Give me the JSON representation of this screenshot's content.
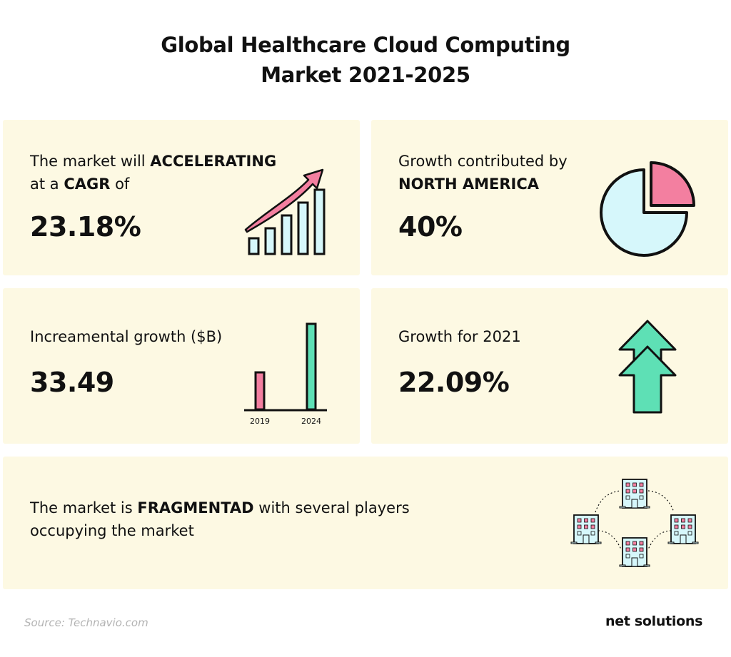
{
  "title": {
    "line1": "Global Healthcare Cloud Computing",
    "line2": "Market 2021-2025"
  },
  "cards": {
    "cagr": {
      "text_pre": "The market will ",
      "text_bold": "ACCELERATING",
      "text_line2_pre": "at a ",
      "text_line2_bold": "CAGR",
      "text_line2_post": " of",
      "value": "23.18%",
      "icon": "growth-bar-arrow-icon"
    },
    "north_america": {
      "text_line1": "Growth contributed by",
      "text_line2_bold": "NORTH AMERICA",
      "value": "40%",
      "icon": "pie-chart-icon"
    },
    "incremental": {
      "text": "Increamental growth ($B)",
      "value": "33.49",
      "chart": {
        "categories": [
          "2019",
          "2024"
        ],
        "colors": [
          "#f37fa0",
          "#5ee0b5"
        ]
      }
    },
    "growth_2021": {
      "text": "Growth for 2021",
      "value": "22.09%",
      "icon": "double-up-arrow-icon"
    },
    "fragmented": {
      "text_pre": "The market is ",
      "text_bold": "FRAGMENTAD",
      "text_post": " with several players",
      "text_line2": "occupying the market",
      "icon": "buildings-network-icon"
    }
  },
  "footer": {
    "source": "Source: Technavio.com",
    "brand": "net solutions"
  },
  "colors": {
    "card_bg": "#fdf9e3",
    "pink": "#f37fa0",
    "mint": "#5ee0b5",
    "light_blue": "#d6f7fb"
  }
}
